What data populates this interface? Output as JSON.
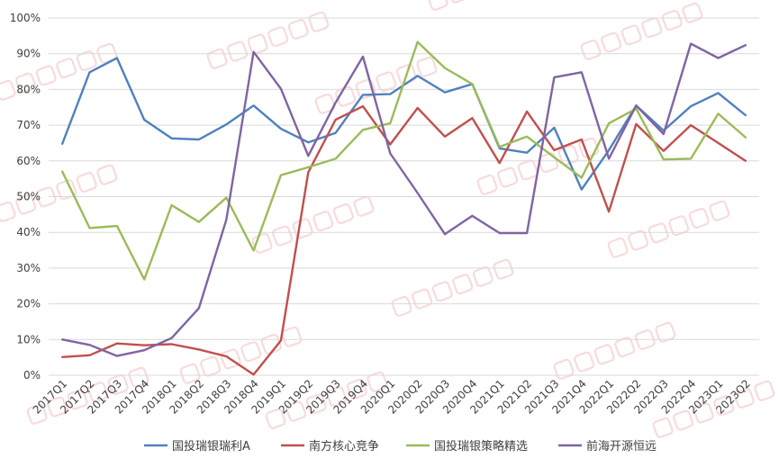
{
  "chart_data": {
    "type": "line",
    "title": "",
    "xlabel": "",
    "ylabel": "",
    "ylim": [
      0,
      100
    ],
    "y_ticks": [
      "0%",
      "10%",
      "20%",
      "30%",
      "40%",
      "50%",
      "60%",
      "70%",
      "80%",
      "90%",
      "100%"
    ],
    "grid": true,
    "legend_position": "bottom",
    "categories": [
      "2017Q1",
      "2017Q2",
      "2017Q3",
      "2017Q4",
      "2018Q1",
      "2018Q2",
      "2018Q3",
      "2018Q4",
      "2019Q1",
      "2019Q2",
      "2019Q3",
      "2019Q4",
      "2020Q1",
      "2020Q2",
      "2020Q3",
      "2020Q4",
      "2021Q1",
      "2021Q2",
      "2021Q3",
      "2021Q4",
      "2022Q1",
      "2022Q2",
      "2022Q3",
      "2022Q4",
      "2023Q1",
      "2023Q2"
    ],
    "series": [
      {
        "name": "国投瑞银瑞利A",
        "color": "#4f81bd",
        "values": [
          64.8,
          84.8,
          88.8,
          71.5,
          66.3,
          66.0,
          70.2,
          75.5,
          69.0,
          65.2,
          67.8,
          78.5,
          78.7,
          83.8,
          79.2,
          81.5,
          63.5,
          62.3,
          69.3,
          52.0,
          63.0,
          75.5,
          68.5,
          75.3,
          79.0,
          72.8
        ]
      },
      {
        "name": "南方核心竞争",
        "color": "#c0504d",
        "values": [
          5.1,
          5.6,
          8.9,
          8.4,
          8.7,
          7.2,
          5.3,
          0.2,
          9.7,
          56.8,
          71.5,
          75.3,
          64.6,
          74.8,
          66.8,
          72.0,
          59.4,
          73.8,
          63.0,
          66.0,
          45.8,
          70.3,
          62.8,
          70.0,
          65.0,
          60.0
        ]
      },
      {
        "name": "国投瑞银策略精选",
        "color": "#9bbb59",
        "values": [
          57.0,
          41.2,
          41.8,
          26.8,
          47.6,
          42.9,
          49.7,
          34.9,
          56.0,
          58.2,
          60.6,
          68.7,
          70.5,
          93.3,
          86.0,
          81.5,
          63.9,
          66.8,
          61.0,
          55.3,
          70.5,
          74.6,
          60.4,
          60.6,
          73.2,
          66.6
        ]
      },
      {
        "name": "前海开源恒远",
        "color": "#8064a2",
        "values": [
          10.0,
          8.5,
          5.4,
          7.0,
          10.4,
          18.8,
          43.5,
          90.5,
          80.2,
          61.4,
          76.3,
          89.2,
          62.1,
          51.0,
          39.5,
          44.6,
          39.8,
          39.8,
          83.4,
          84.8,
          60.6,
          75.5,
          67.5,
          92.8,
          88.8,
          92.4
        ]
      }
    ]
  }
}
